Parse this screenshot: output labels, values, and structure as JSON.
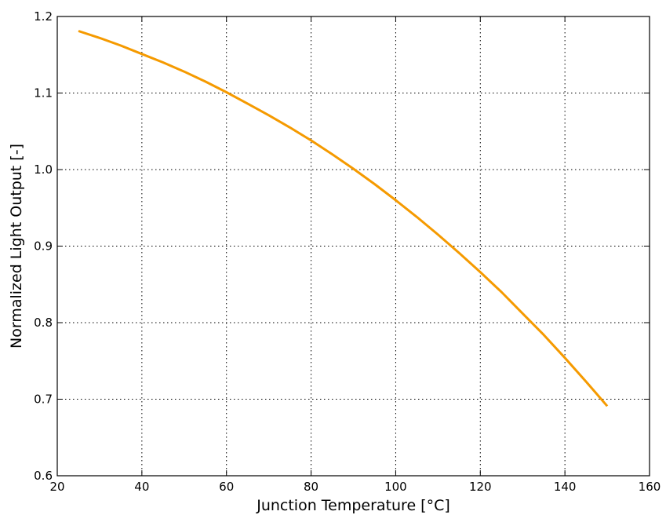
{
  "chart_data": {
    "type": "line",
    "title": "",
    "xlabel": "Junction Temperature [°C]",
    "ylabel": "Normalized Light Output [-]",
    "xlim": [
      20,
      160
    ],
    "ylim": [
      0.6,
      1.2
    ],
    "xticks": [
      20,
      40,
      60,
      80,
      100,
      120,
      140,
      160
    ],
    "yticks": [
      0.6,
      0.7,
      0.8,
      0.9,
      1.0,
      1.1,
      1.2
    ],
    "xtick_labels": [
      "20",
      "40",
      "60",
      "80",
      "100",
      "120",
      "140",
      "160"
    ],
    "ytick_labels": [
      "0.6",
      "0.7",
      "0.8",
      "0.9",
      "1.0",
      "1.1",
      "1.2"
    ],
    "grid": true,
    "series": [
      {
        "color": "#f59a00",
        "x": [
          25,
          30,
          35,
          40,
          45,
          50,
          55,
          60,
          65,
          70,
          75,
          80,
          85,
          90,
          95,
          100,
          105,
          110,
          115,
          120,
          125,
          130,
          135,
          140,
          145,
          150
        ],
        "y": [
          1.181,
          1.172,
          1.162,
          1.151,
          1.14,
          1.128,
          1.115,
          1.101,
          1.086,
          1.071,
          1.055,
          1.038,
          1.02,
          1.001,
          0.981,
          0.96,
          0.938,
          0.915,
          0.891,
          0.866,
          0.84,
          0.812,
          0.784,
          0.754,
          0.723,
          0.691
        ]
      }
    ]
  }
}
